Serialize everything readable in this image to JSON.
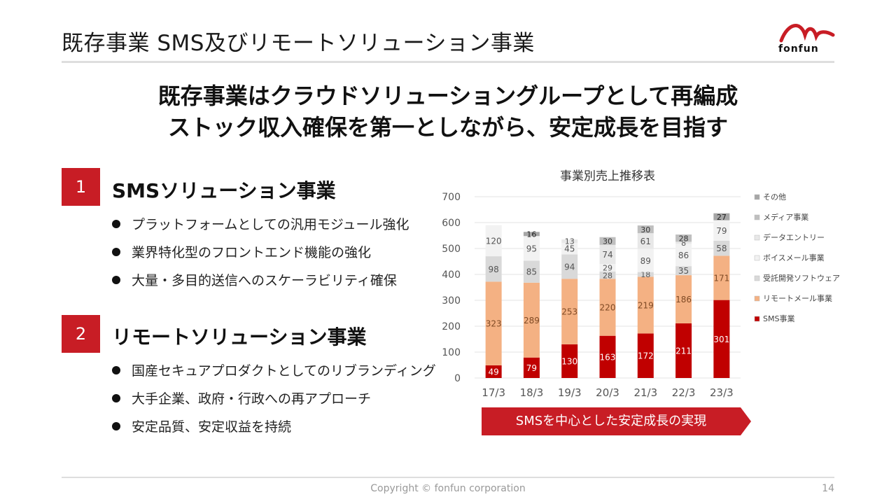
{
  "header": {
    "title": "既存事業 SMS及びリモートソリューション事業",
    "logo_text": "fonfun"
  },
  "headline": {
    "line1": "既存事業はクラウドソリューショングループとして再編成",
    "line2": "ストック収入確保を第一としながら、安定成長を目指す"
  },
  "sections": [
    {
      "number": "1",
      "title": "SMSソリューション事業",
      "bullets": [
        "プラットフォームとしての汎用モジュール強化",
        "業界特化型のフロントエンド機能の強化",
        "大量・多目的送信へのスケーラビリティ確保"
      ]
    },
    {
      "number": "2",
      "title": "リモートソリューション事業",
      "bullets": [
        "国産セキュアプロダクトとしてのリブランディング",
        "大手企業、政府・行政への再アプローチ",
        "安定品質、安定収益を持続"
      ]
    }
  ],
  "banner": {
    "text": "SMSを中心とした安定成長の実現"
  },
  "colors": {
    "accent": "#c81d25",
    "sms": "#c00000",
    "remote_mail": "#f4b183",
    "software": "#d9d9d9",
    "voice_mail": "#f2f2f2",
    "data_entry": "#ededed",
    "media": "#bfbfbf",
    "other": "#a6a6a6"
  },
  "chart_data": {
    "type": "bar",
    "stacked": true,
    "title": "事業別売上推移表",
    "categories": [
      "17/3",
      "18/3",
      "19/3",
      "20/3",
      "21/3",
      "22/3",
      "23/3"
    ],
    "ylim": [
      0,
      700
    ],
    "yticks": [
      0,
      100,
      200,
      300,
      400,
      500,
      600,
      700
    ],
    "grid": true,
    "legend_position": "right",
    "series": [
      {
        "name": "SMS事業",
        "color": "#c00000",
        "label_color": "#ffffff",
        "values": [
          49,
          79,
          130,
          163,
          172,
          211,
          301
        ]
      },
      {
        "name": "リモートメール事業",
        "color": "#f4b183",
        "label_color": "#7f4a25",
        "values": [
          323,
          289,
          253,
          220,
          219,
          186,
          171
        ]
      },
      {
        "name": "受託開発ソフトウェア",
        "color": "#d9d9d9",
        "label_color": "#555555",
        "values": [
          98,
          85,
          94,
          28,
          18,
          35,
          58
        ]
      },
      {
        "name": "ボイスメール事業",
        "color": "#f2f2f2",
        "label_color": "#555555",
        "values": [
          120,
          95,
          45,
          29,
          89,
          86,
          79
        ]
      },
      {
        "name": "データエントリー",
        "color": "#e8e8e8",
        "label_color": "#555555",
        "values": [
          0,
          0,
          13,
          74,
          61,
          8,
          0
        ]
      },
      {
        "name": "メディア事業",
        "color": "#bfbfbf",
        "label_color": "#333333",
        "values": [
          0,
          0,
          0,
          30,
          30,
          28,
          0
        ]
      },
      {
        "name": "その他",
        "color": "#a6a6a6",
        "label_color": "#222222",
        "values": [
          0,
          16,
          0,
          0,
          0,
          0,
          27
        ]
      }
    ]
  },
  "footer": {
    "copyright": "Copyright © fonfun corporation",
    "page": "14"
  }
}
